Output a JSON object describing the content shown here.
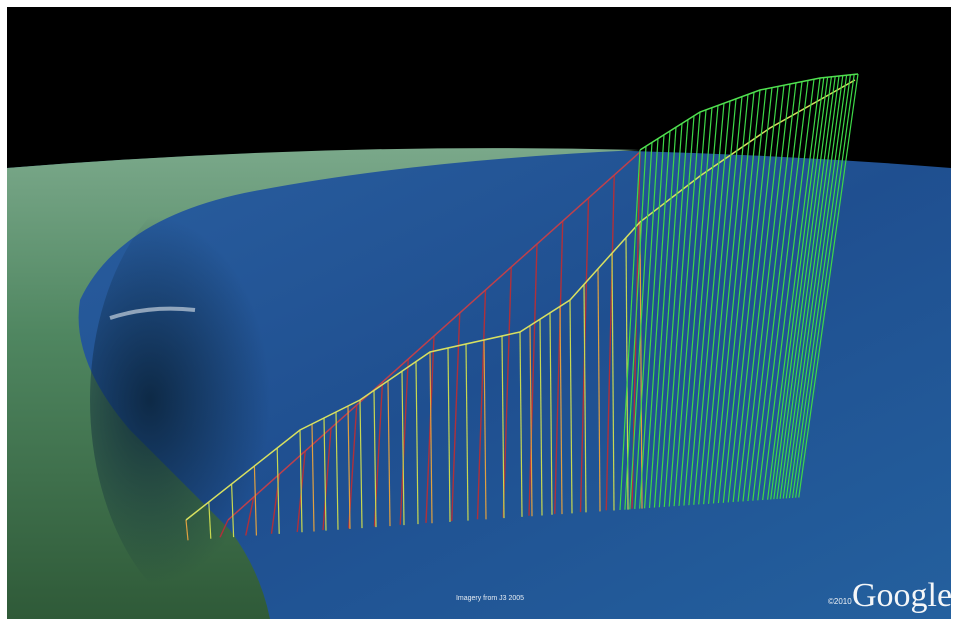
{
  "attribution": {
    "imagery": "Imagery from J3 2005",
    "copyright": "©2010",
    "brand": "Google"
  }
}
